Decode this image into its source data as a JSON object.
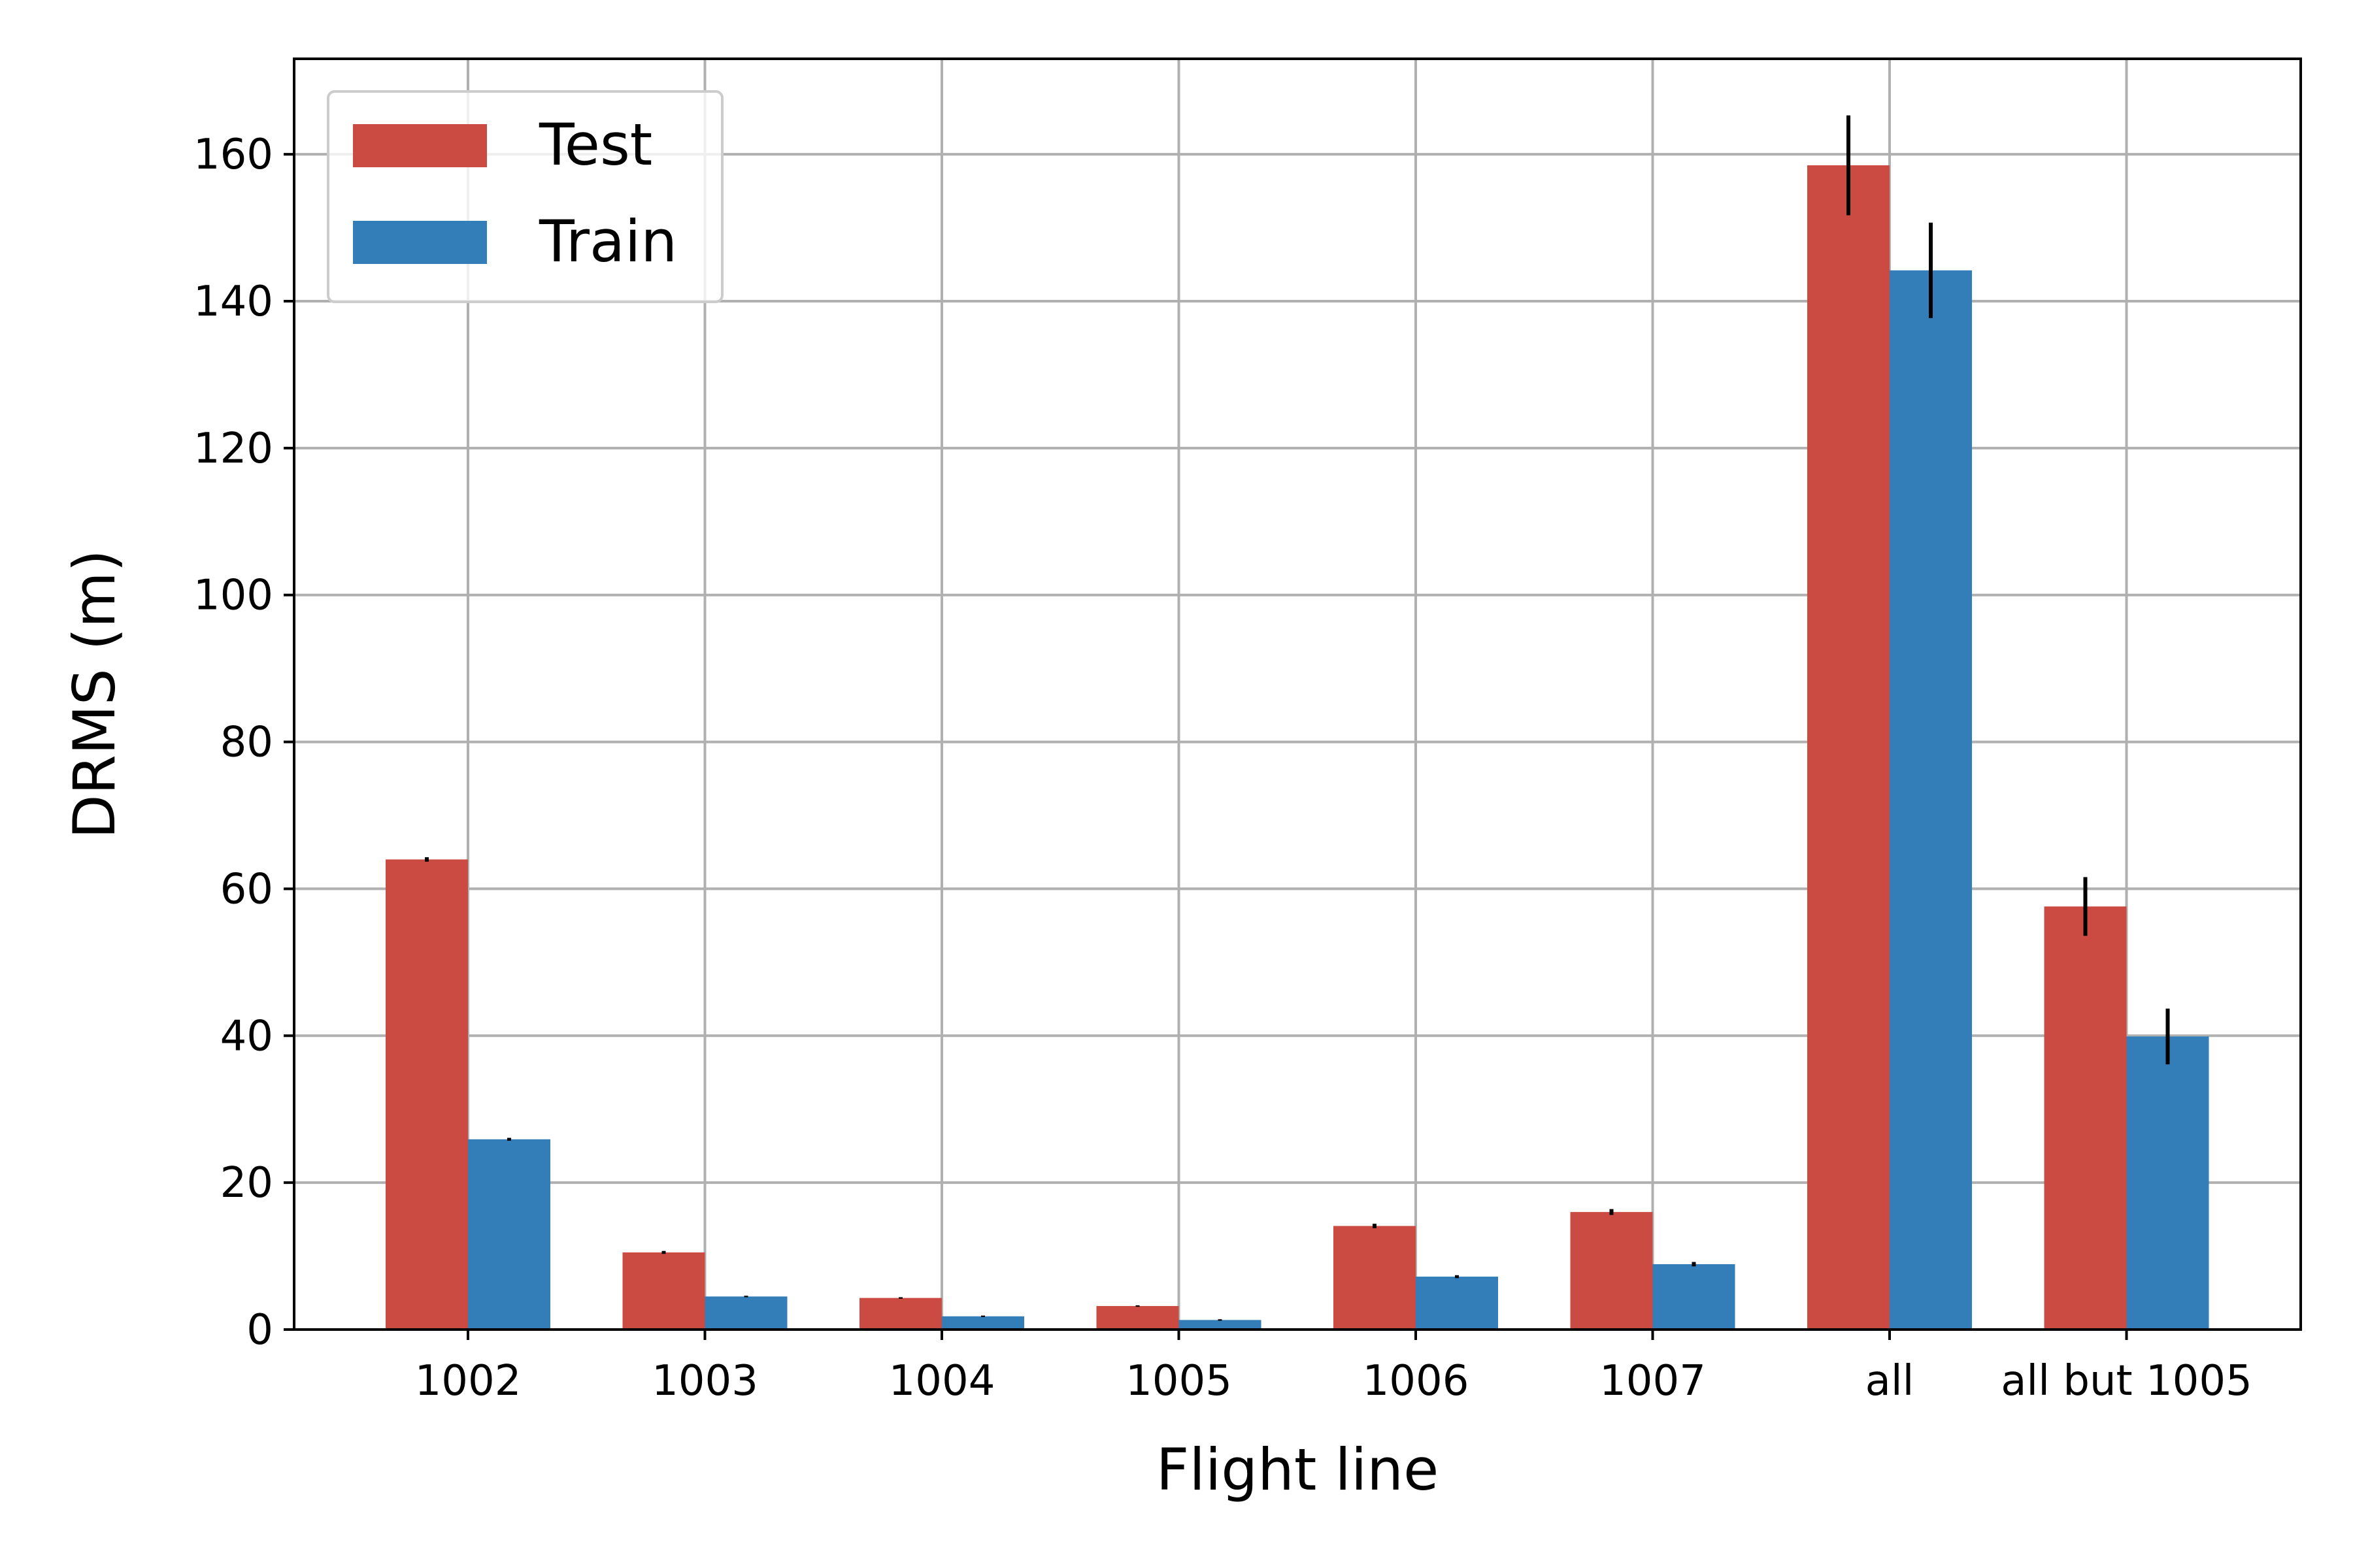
{
  "chart_data": {
    "type": "bar",
    "xlabel": "Flight line",
    "ylabel": "DRMS (m)",
    "categories": [
      "1002",
      "1003",
      "1004",
      "1005",
      "1006",
      "1007",
      "all",
      "all but 1005"
    ],
    "ylim": [
      0,
      173
    ],
    "yticks": [
      0,
      20,
      40,
      60,
      80,
      100,
      120,
      140,
      160
    ],
    "grid": true,
    "legend_position": "top-left",
    "series": [
      {
        "name": "Test",
        "color": "#cb4b43",
        "values": [
          64.0,
          10.5,
          4.3,
          3.2,
          14.1,
          16.0,
          158.5,
          57.6
        ],
        "errors": [
          0.3,
          0.2,
          0.1,
          0.1,
          0.3,
          0.4,
          6.8,
          4.0
        ]
      },
      {
        "name": "Train",
        "color": "#337eb8",
        "values": [
          25.9,
          4.5,
          1.8,
          1.3,
          7.2,
          8.9,
          144.2,
          39.9
        ],
        "errors": [
          0.2,
          0.1,
          0.1,
          0.1,
          0.2,
          0.3,
          6.5,
          3.8
        ]
      }
    ]
  }
}
